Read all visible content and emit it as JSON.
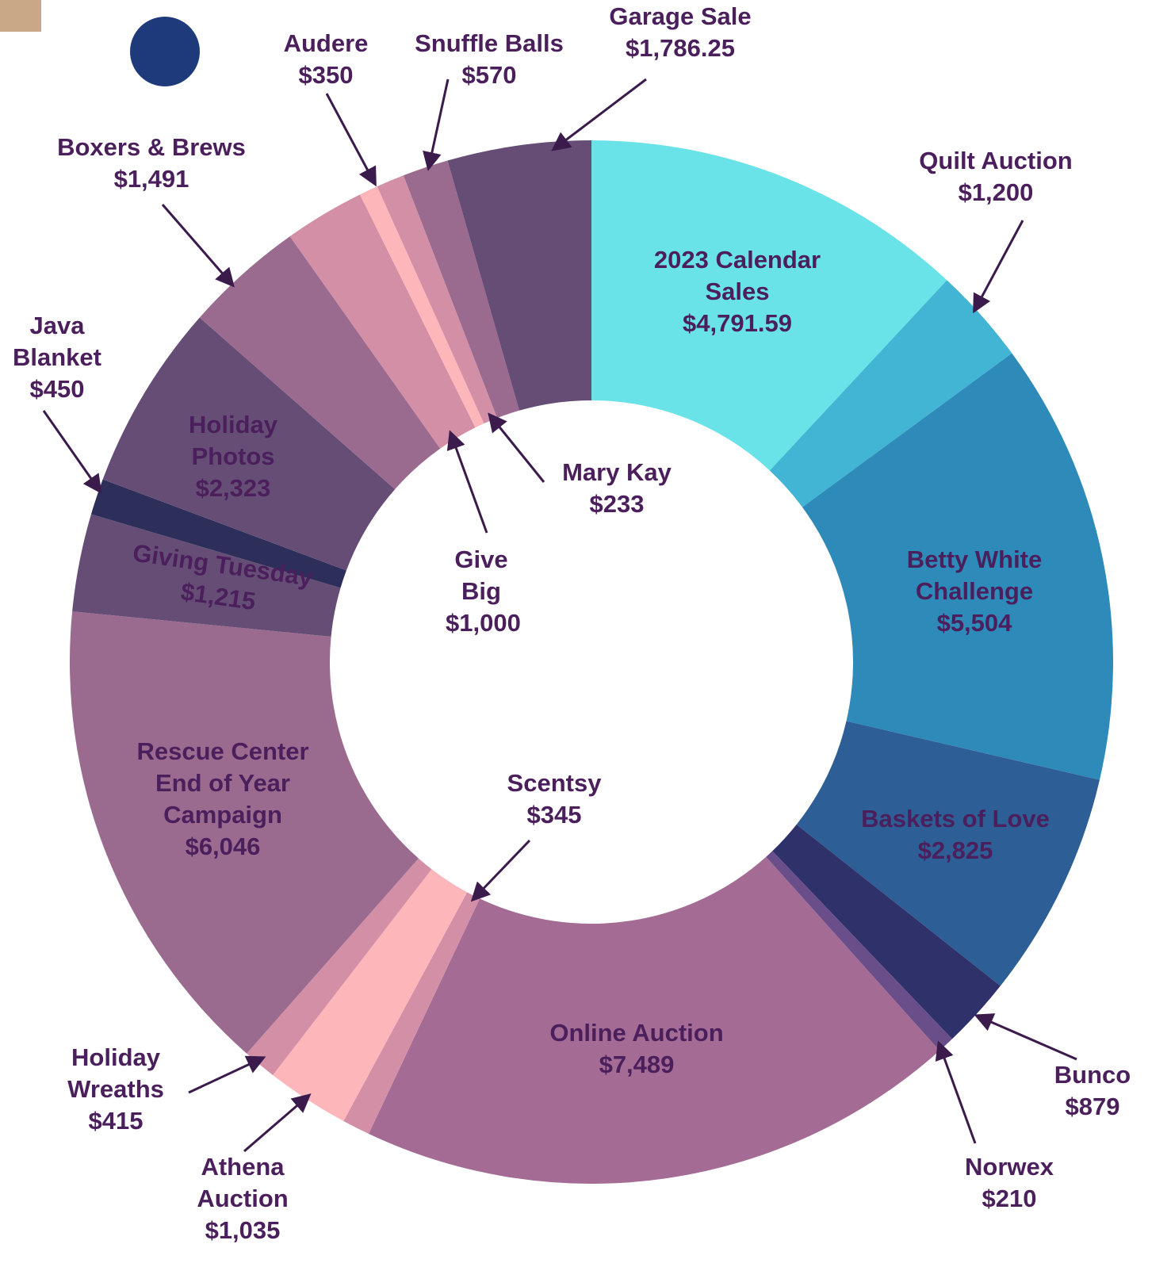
{
  "chart_data": {
    "type": "donut",
    "categories": [
      "2023 Calendar Sales",
      "Quilt Auction",
      "Betty White Challenge",
      "Baskets of Love",
      "Bunco",
      "Norwex",
      "Online Auction",
      "Scentsy",
      "Athena Auction",
      "Holiday Wreaths",
      "Rescue Center End of Year Campaign",
      "Giving Tuesday",
      "Java Blanket",
      "Holiday Photos",
      "Boxers & Brews",
      "Give Big",
      "Mary Kay",
      "Audere",
      "Snuffle Balls",
      "Garage Sale"
    ],
    "values": [
      4791.59,
      1200,
      5504,
      2825,
      879,
      210,
      7489,
      345,
      1035,
      415,
      6046,
      1215,
      450,
      2323,
      1491,
      1000,
      233,
      350,
      570,
      1786.25
    ],
    "value_labels": [
      "$4,791.59",
      "$1,200",
      "$5,504",
      "$2,825",
      "$879",
      "$210",
      "$7,489",
      "$345",
      "$1,035",
      "$415",
      "$6,046",
      "$1,215",
      "$450",
      "$2,323",
      "$1,491",
      "$1,000",
      "$233",
      "$350",
      "$570",
      "$1,786.25"
    ],
    "colors": [
      "#6ae3e8",
      "#42b4d4",
      "#2e8ab9",
      "#2e5e96",
      "#2f316a",
      "#6a4e8a",
      "#a46b94",
      "#d38fa6",
      "#fdb6b9",
      "#d38fa6",
      "#9b6a8f",
      "#654d76",
      "#2e2e5a",
      "#654d76",
      "#9b6a8f",
      "#d38fa6",
      "#fdb6b9",
      "#d38fa6",
      "#9b6a8f",
      "#654d76"
    ]
  }
}
